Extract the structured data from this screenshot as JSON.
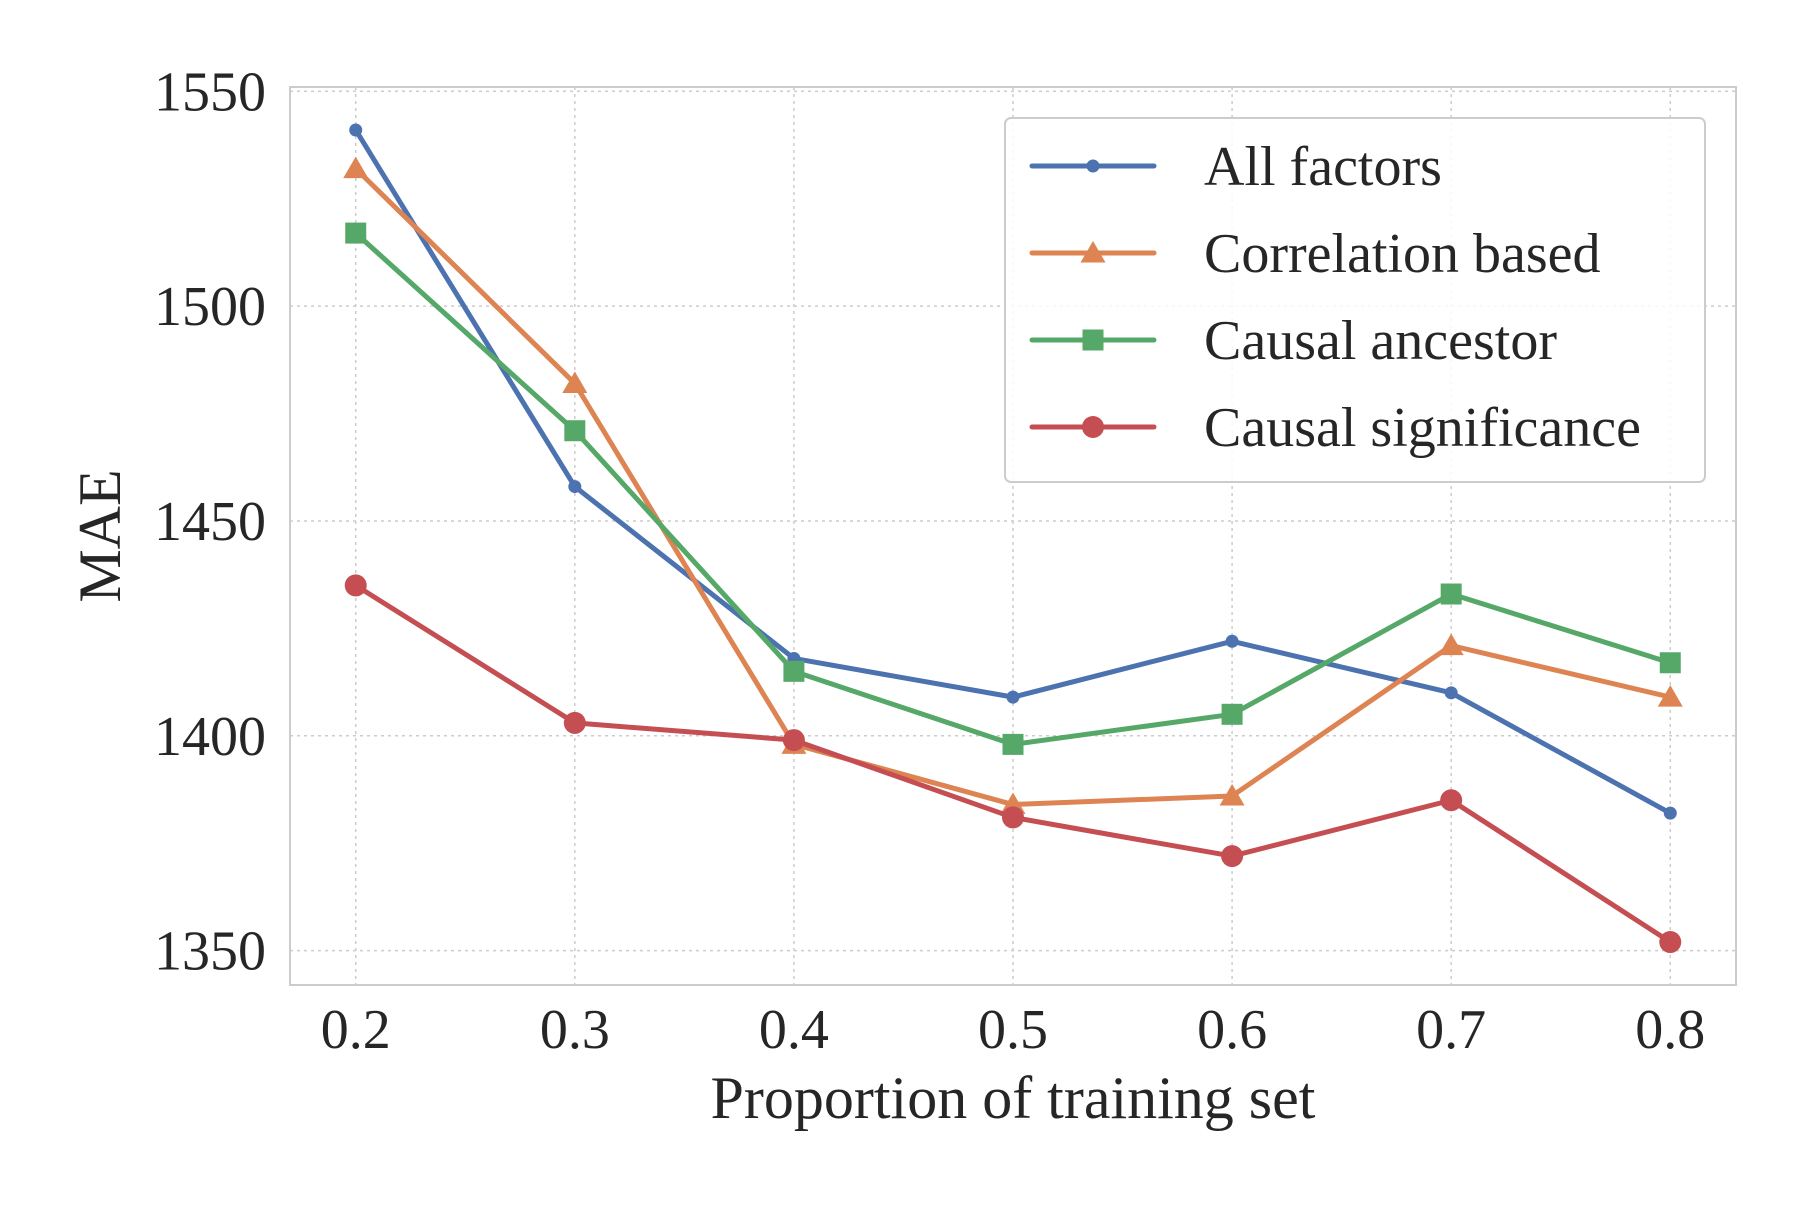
{
  "chart_data": {
    "type": "line",
    "title": "",
    "xlabel": "Proportion of training set",
    "ylabel": "MAE",
    "x": [
      0.2,
      0.3,
      0.4,
      0.5,
      0.6,
      0.7,
      0.8
    ],
    "x_tick_labels": [
      "0.2",
      "0.3",
      "0.4",
      "0.5",
      "0.6",
      "0.7",
      "0.8"
    ],
    "y_ticks": [
      1350,
      1400,
      1450,
      1500,
      1550
    ],
    "y_tick_labels": [
      "1350",
      "1400",
      "1450",
      "1500",
      "1550"
    ],
    "xlim": [
      0.17,
      0.83
    ],
    "ylim": [
      1342,
      1551
    ],
    "grid": true,
    "legend_position": "top-right",
    "series": [
      {
        "name": "All factors",
        "color": "#4c72b0",
        "marker": "small-circle",
        "values": [
          1541,
          1458,
          1418,
          1409,
          1422,
          1410,
          1382
        ]
      },
      {
        "name": "Correlation based",
        "color": "#dd8452",
        "marker": "triangle",
        "values": [
          1532,
          1482,
          1398,
          1384,
          1386,
          1421,
          1409
        ]
      },
      {
        "name": "Causal ancestor",
        "color": "#55a868",
        "marker": "square",
        "values": [
          1517,
          1471,
          1415,
          1398,
          1405,
          1433,
          1417
        ]
      },
      {
        "name": "Causal significance",
        "color": "#c44e52",
        "marker": "circle",
        "values": [
          1435,
          1403,
          1399,
          1381,
          1372,
          1385,
          1352
        ]
      }
    ]
  }
}
